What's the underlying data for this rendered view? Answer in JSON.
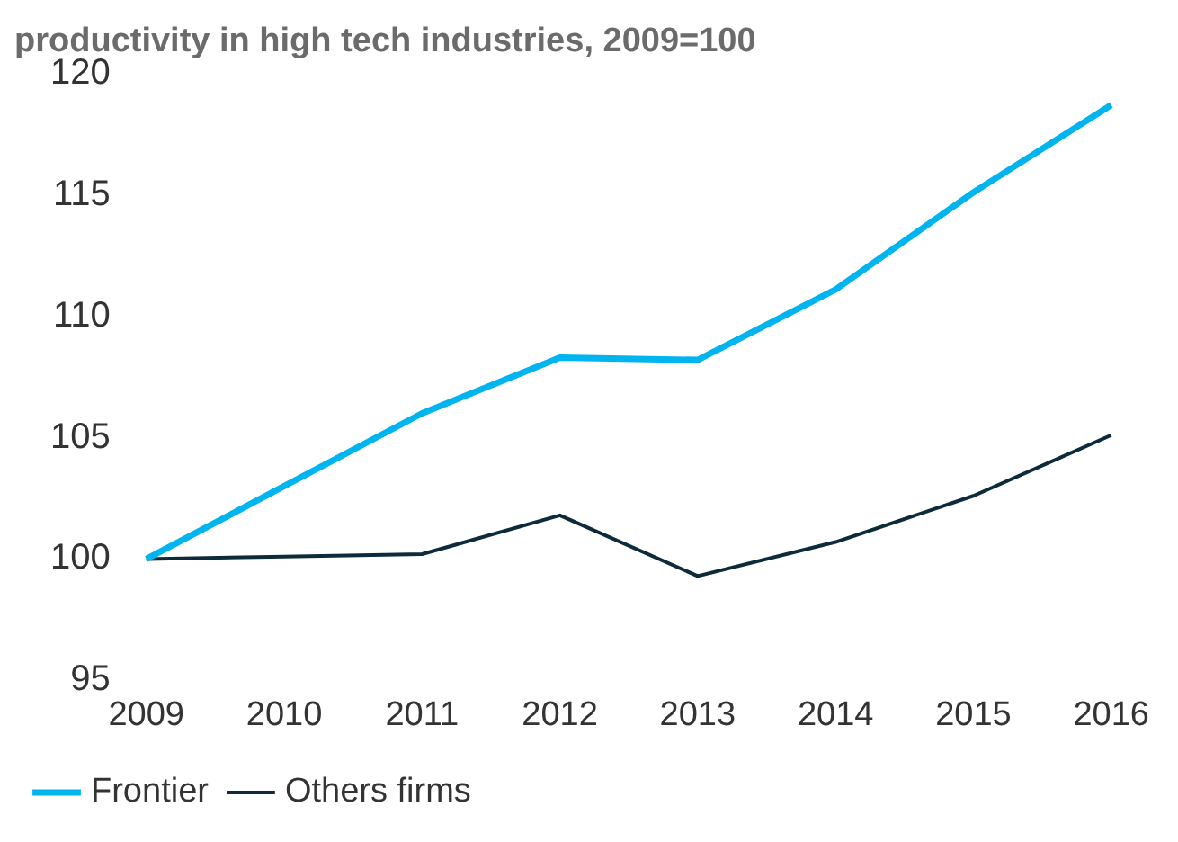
{
  "chart_data": {
    "type": "line",
    "title": "productivity in high tech industries, 2009=100",
    "categories": [
      "2009",
      "2010",
      "2011",
      "2012",
      "2013",
      "2014",
      "2015",
      "2016"
    ],
    "series": [
      {
        "name": "Frontier",
        "color": "#00b4f0",
        "values": [
          100,
          103.0,
          106.0,
          108.3,
          108.2,
          111.1,
          115.1,
          118.7
        ]
      },
      {
        "name": "Others firms",
        "color": "#0d2b3a",
        "values": [
          100,
          100.1,
          100.2,
          101.8,
          99.3,
          100.7,
          102.6,
          105.1
        ]
      }
    ],
    "ylim": [
      95,
      120
    ],
    "yticks": [
      95,
      100,
      105,
      110,
      115,
      120
    ],
    "grid": false,
    "legend": "bottom",
    "marker": "none",
    "line_style": "solid"
  }
}
